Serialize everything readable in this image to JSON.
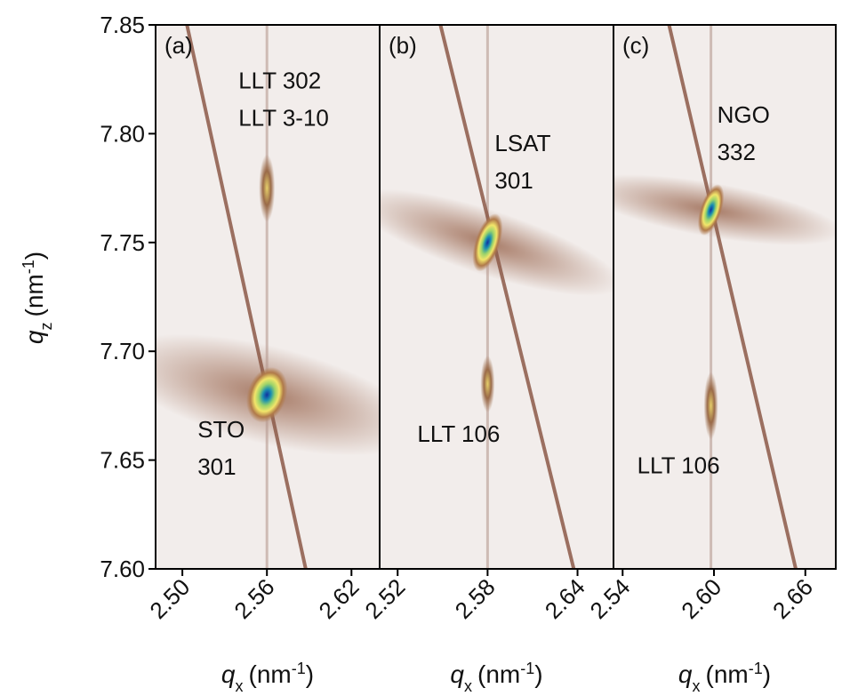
{
  "chart_data": [
    {
      "type": "heatmap",
      "panel_label": "(a)",
      "xlim": [
        2.481,
        2.64
      ],
      "xticks": [
        {
          "value": 2.5,
          "label": "2.50"
        },
        2.56,
        2.62
      ],
      "ylim": [
        7.6,
        7.85
      ],
      "yticks": [
        {
          "value": 7.6,
          "label": "7.60"
        },
        7.65,
        {
          "value": 7.7,
          "label": "7.70"
        },
        7.75,
        {
          "value": 7.8,
          "label": "7.80"
        },
        7.85
      ],
      "ylabel": [
        "q",
        "z",
        "(nm",
        "-1",
        ")"
      ],
      "xlabel": [
        "q",
        "x",
        "(nm",
        "-1",
        ")"
      ],
      "peaks": [
        {
          "qx": 2.56,
          "qz": 7.68,
          "label": [
            "STO",
            "301"
          ]
        },
        {
          "qx": 2.56,
          "qz": 7.775,
          "label": [
            "LLT 302",
            "LLT 3-10"
          ]
        }
      ]
    },
    {
      "type": "heatmap",
      "panel_label": "(b)",
      "xlim": [
        2.508,
        2.664
      ],
      "xticks": [
        2.52,
        2.58,
        2.64
      ],
      "ylim": [
        7.6,
        7.85
      ],
      "xlabel": [
        "q",
        "x",
        "(nm",
        "-1",
        ")"
      ],
      "peaks": [
        {
          "qx": 2.58,
          "qz": 7.75,
          "label": [
            "LSAT",
            "301"
          ]
        },
        {
          "qx": 2.58,
          "qz": 7.685,
          "label": [
            "LLT 106"
          ]
        }
      ]
    },
    {
      "type": "heatmap",
      "panel_label": "(c)",
      "xlim": [
        2.534,
        2.68
      ],
      "xticks": [
        2.54,
        {
          "value": 2.6,
          "label": "2.60"
        },
        2.66
      ],
      "ylim": [
        7.6,
        7.85
      ],
      "xlabel": [
        "q",
        "x",
        "(nm",
        "-1",
        ")"
      ],
      "peaks": [
        {
          "qx": 2.598,
          "qz": 7.765,
          "label": [
            "NGO",
            "332"
          ]
        },
        {
          "qx": 2.598,
          "qz": 7.675,
          "label": [
            "LLT 106"
          ]
        }
      ]
    }
  ]
}
